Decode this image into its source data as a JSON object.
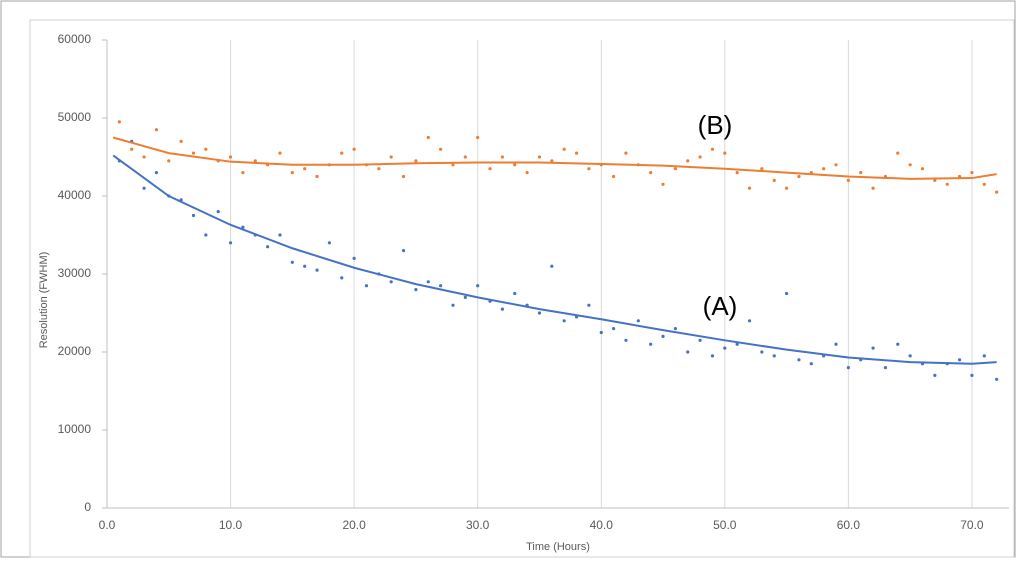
{
  "chart_data": {
    "type": "scatter",
    "xlabel": "Time (Hours)",
    "ylabel": "Resolution (FWHM)",
    "xlim": [
      0,
      73
    ],
    "ylim": [
      0,
      60000
    ],
    "xticks": [
      {
        "value": 0,
        "label": "0.0"
      },
      {
        "value": 10,
        "label": "10.0"
      },
      {
        "value": 20,
        "label": "20.0"
      },
      {
        "value": 30,
        "label": "30.0"
      },
      {
        "value": 40,
        "label": "40.0"
      },
      {
        "value": 50,
        "label": "50.0"
      },
      {
        "value": 60,
        "label": "60.0"
      },
      {
        "value": 70,
        "label": "70.0"
      }
    ],
    "yticks": [
      0,
      10000,
      20000,
      30000,
      40000,
      50000,
      60000
    ],
    "grid": true,
    "series": [
      {
        "name": "(A)",
        "color": "#4472c4",
        "x": [
          1,
          2,
          3,
          4,
          5,
          6,
          7,
          8,
          9,
          10,
          11,
          12,
          13,
          14,
          15,
          16,
          17,
          18,
          19,
          20,
          21,
          22,
          23,
          24,
          25,
          26,
          27,
          28,
          29,
          30,
          31,
          32,
          33,
          34,
          35,
          36,
          37,
          38,
          39,
          40,
          41,
          42,
          43,
          44,
          45,
          46,
          47,
          48,
          49,
          50,
          51,
          52,
          53,
          54,
          55,
          56,
          57,
          58,
          59,
          60,
          61,
          62,
          63,
          64,
          65,
          66,
          67,
          68,
          69,
          70,
          71,
          72
        ],
        "values": [
          44500,
          47000,
          41000,
          43000,
          40000,
          39500,
          37500,
          35000,
          38000,
          34000,
          36000,
          35000,
          33500,
          35000,
          31500,
          31000,
          30500,
          34000,
          29500,
          32000,
          28500,
          30000,
          29000,
          33000,
          28000,
          29000,
          28500,
          26000,
          27000,
          28500,
          26500,
          25500,
          27500,
          26000,
          25000,
          31000,
          24000,
          24500,
          26000,
          22500,
          23000,
          21500,
          24000,
          21000,
          22000,
          23000,
          20000,
          21500,
          19500,
          20500,
          21000,
          24000,
          20000,
          19500,
          27500,
          19000,
          18500,
          19500,
          21000,
          18000,
          19000,
          20500,
          18000,
          21000,
          19500,
          18500,
          17000,
          18500,
          19000,
          17000,
          19500,
          16500
        ]
      },
      {
        "name": "(B)",
        "color": "#ed7d31",
        "x": [
          1,
          2,
          3,
          4,
          5,
          6,
          7,
          8,
          9,
          10,
          11,
          12,
          13,
          14,
          15,
          16,
          17,
          18,
          19,
          20,
          21,
          22,
          23,
          24,
          25,
          26,
          27,
          28,
          29,
          30,
          31,
          32,
          33,
          34,
          35,
          36,
          37,
          38,
          39,
          40,
          41,
          42,
          43,
          44,
          45,
          46,
          47,
          48,
          49,
          50,
          51,
          52,
          53,
          54,
          55,
          56,
          57,
          58,
          59,
          60,
          61,
          62,
          63,
          64,
          65,
          66,
          67,
          68,
          69,
          70,
          71,
          72
        ],
        "values": [
          49500,
          46000,
          45000,
          48500,
          44500,
          47000,
          45500,
          46000,
          44500,
          45000,
          43000,
          44500,
          44000,
          45500,
          43000,
          43500,
          42500,
          44000,
          45500,
          46000,
          44000,
          43500,
          45000,
          42500,
          44500,
          47500,
          46000,
          44000,
          45000,
          47500,
          43500,
          45000,
          44000,
          43000,
          45000,
          44500,
          46000,
          45500,
          43500,
          44000,
          42500,
          45500,
          44000,
          43000,
          41500,
          43500,
          44500,
          45000,
          46000,
          45500,
          43000,
          41000,
          43500,
          42000,
          41000,
          42500,
          43000,
          43500,
          44000,
          42000,
          43000,
          41000,
          42500,
          45500,
          44000,
          43500,
          42000,
          41500,
          42500,
          43000,
          41500,
          40500
        ]
      }
    ],
    "trendlines": [
      {
        "color": "#4472c4",
        "x": [
          0.5,
          5,
          10,
          15,
          20,
          25,
          30,
          35,
          40,
          45,
          50,
          55,
          60,
          65,
          70,
          72
        ],
        "values": [
          45200,
          40000,
          36300,
          33300,
          30800,
          28700,
          27000,
          25500,
          24200,
          22800,
          21500,
          20300,
          19300,
          18700,
          18500,
          18700
        ]
      },
      {
        "color": "#ed7d31",
        "x": [
          0.5,
          5,
          10,
          15,
          20,
          25,
          30,
          35,
          40,
          45,
          50,
          55,
          60,
          65,
          70,
          72
        ],
        "values": [
          47500,
          45500,
          44400,
          44000,
          44000,
          44200,
          44300,
          44300,
          44100,
          43900,
          43500,
          43000,
          42500,
          42200,
          42300,
          42800
        ]
      }
    ]
  }
}
